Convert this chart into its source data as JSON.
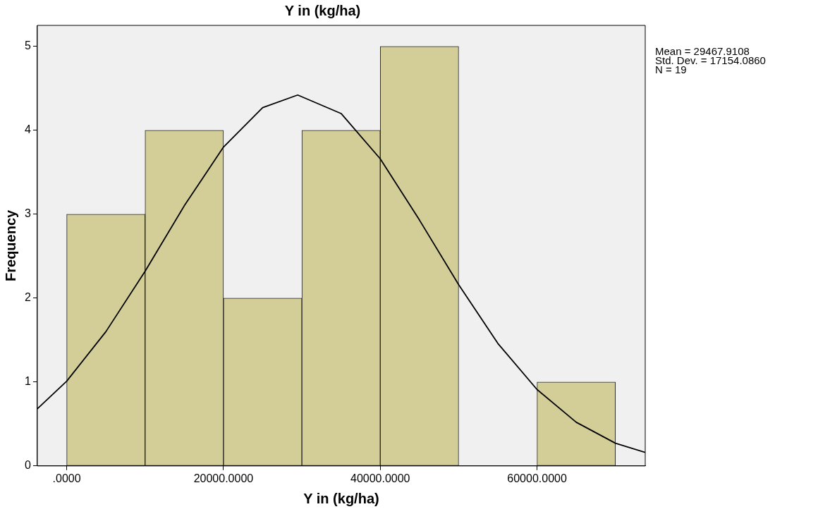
{
  "chart_data": {
    "type": "histogram",
    "title": "Y in (kg/ha)",
    "xlabel": "Y in (kg/ha)",
    "ylabel": "Frequency",
    "bins": [
      0,
      10000,
      20000,
      30000,
      40000,
      50000,
      60000,
      70000
    ],
    "values": [
      3,
      4,
      2,
      4,
      5,
      0,
      1
    ],
    "color": "#d3cd98",
    "series": [
      {
        "type": "line",
        "color": "#000000",
        "x": [
          -3750,
          0,
          5000,
          10000,
          15000,
          20000,
          25000,
          29468,
          35000,
          40000,
          45000,
          50000,
          55000,
          60000,
          65000,
          70000,
          73800
        ],
        "values": [
          0.68,
          1.01,
          1.6,
          2.32,
          3.1,
          3.8,
          4.27,
          4.42,
          4.2,
          3.66,
          2.93,
          2.16,
          1.46,
          0.91,
          0.52,
          0.27,
          0.16
        ]
      }
    ],
    "xlim": [
      -3750,
      73800
    ],
    "xticks": [
      {
        "value": 0,
        "label": ".0000"
      },
      {
        "value": 20000,
        "label": "20000.0000"
      },
      {
        "value": 40000,
        "label": "40000.0000"
      },
      {
        "value": 60000,
        "label": "60000.0000"
      }
    ],
    "ylim": [
      0,
      5.25
    ],
    "yticks": [
      0,
      1,
      2,
      3,
      4,
      5
    ],
    "grid": false,
    "legend": false,
    "annotations": [
      "Mean = 29467.9108",
      "Std. Dev. = 17154.0860",
      "N = 19"
    ]
  }
}
